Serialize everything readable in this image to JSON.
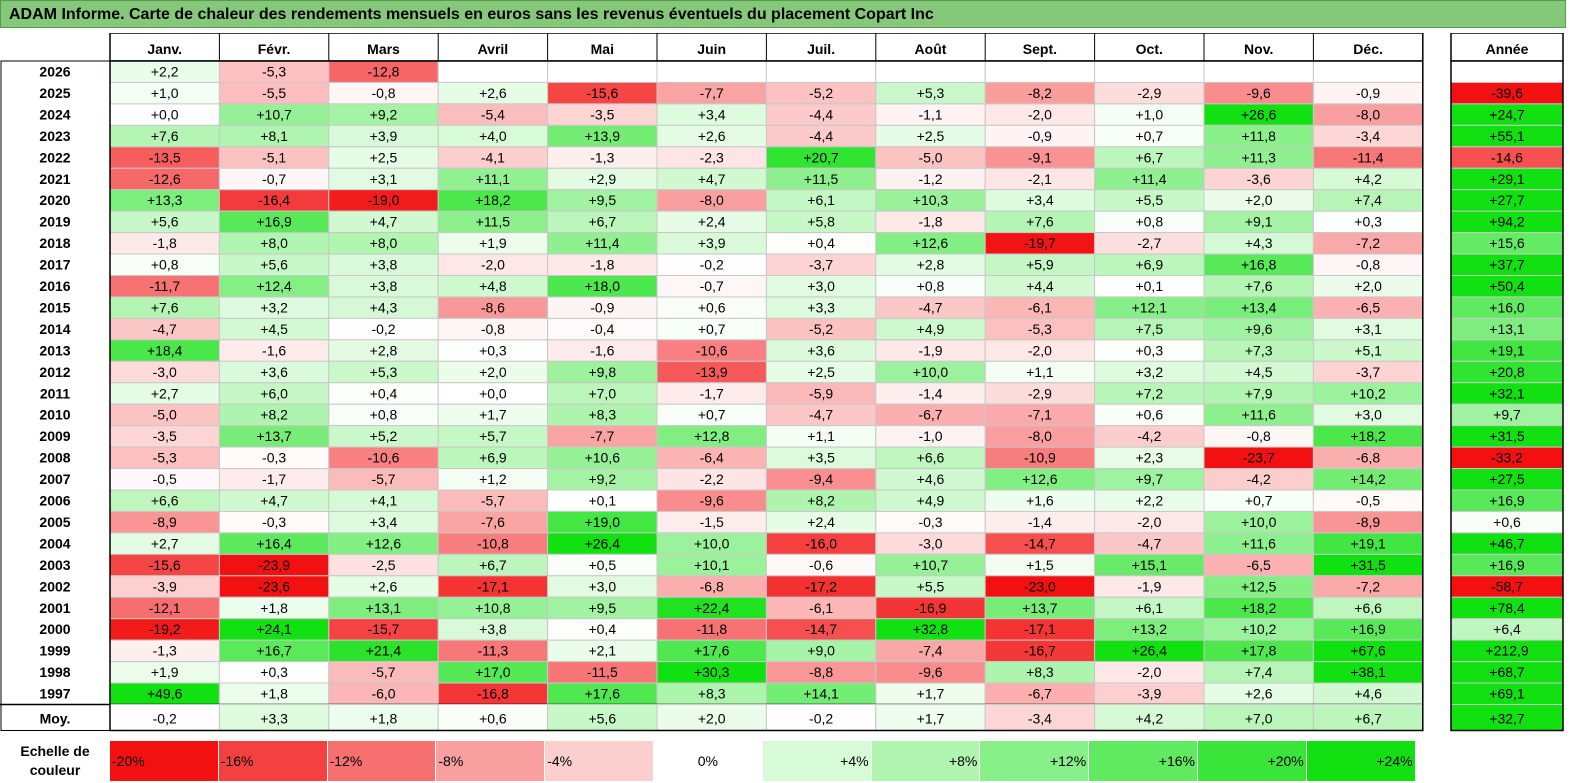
{
  "title": "ADAM Informe. Carte de chaleur des rendements mensuels en euros sans les revenus éventuels du placement Copart Inc",
  "chart_data": {
    "type": "heatmap",
    "title": "ADAM Informe. Carte de chaleur des rendements mensuels en euros sans les revenus éventuels du placement Copart Inc",
    "columns": [
      "Janv.",
      "Févr.",
      "Mars",
      "Avril",
      "Mai",
      "Juin",
      "Juil.",
      "Août",
      "Sept.",
      "Oct.",
      "Nov.",
      "Déc."
    ],
    "annual_header": "Année",
    "rows": [
      {
        "year": "2026",
        "values": [
          "+2,2",
          "-5,3",
          "-12,8",
          null,
          null,
          null,
          null,
          null,
          null,
          null,
          null,
          null
        ],
        "annual": null
      },
      {
        "year": "2025",
        "values": [
          "+1,0",
          "-5,5",
          "-0,8",
          "+2,6",
          "-15,6",
          "-7,7",
          "-5,2",
          "+5,3",
          "-8,2",
          "-2,9",
          "-9,6",
          "-0,9"
        ],
        "annual": "-39,6"
      },
      {
        "year": "2024",
        "values": [
          "+0,0",
          "+10,7",
          "+9,2",
          "-5,4",
          "-3,5",
          "+3,4",
          "-4,4",
          "-1,1",
          "-2,0",
          "+1,0",
          "+26,6",
          "-8,0"
        ],
        "annual": "+24,7"
      },
      {
        "year": "2023",
        "values": [
          "+7,6",
          "+8,1",
          "+3,9",
          "+4,0",
          "+13,9",
          "+2,6",
          "-4,4",
          "+2,5",
          "-0,9",
          "+0,7",
          "+11,8",
          "-3,4"
        ],
        "annual": "+55,1"
      },
      {
        "year": "2022",
        "values": [
          "-13,5",
          "-5,1",
          "+2,5",
          "-4,1",
          "-1,3",
          "-2,3",
          "+20,7",
          "-5,0",
          "-9,1",
          "+6,7",
          "+11,3",
          "-11,4"
        ],
        "annual": "-14,6"
      },
      {
        "year": "2021",
        "values": [
          "-12,6",
          "-0,7",
          "+3,1",
          "+11,1",
          "+2,9",
          "+4,7",
          "+11,5",
          "-1,2",
          "-2,1",
          "+11,4",
          "-3,6",
          "+4,2"
        ],
        "annual": "+29,1"
      },
      {
        "year": "2020",
        "values": [
          "+13,3",
          "-16,4",
          "-19,0",
          "+18,2",
          "+9,5",
          "-8,0",
          "+6,1",
          "+10,3",
          "+3,4",
          "+5,5",
          "+2,0",
          "+7,4"
        ],
        "annual": "+27,7"
      },
      {
        "year": "2019",
        "values": [
          "+5,6",
          "+16,9",
          "+4,7",
          "+11,5",
          "+6,7",
          "+2,4",
          "+5,8",
          "-1,8",
          "+7,6",
          "+0,8",
          "+9,1",
          "+0,3"
        ],
        "annual": "+94,2"
      },
      {
        "year": "2018",
        "values": [
          "-1,8",
          "+8,0",
          "+8,0",
          "+1,9",
          "+11,4",
          "+3,9",
          "+0,4",
          "+12,6",
          "-19,7",
          "-2,7",
          "+4,3",
          "-7,2"
        ],
        "annual": "+15,6"
      },
      {
        "year": "2017",
        "values": [
          "+0,8",
          "+5,6",
          "+3,8",
          "-2,0",
          "-1,8",
          "-0,2",
          "-3,7",
          "+2,8",
          "+5,9",
          "+6,9",
          "+16,8",
          "-0,8"
        ],
        "annual": "+37,7"
      },
      {
        "year": "2016",
        "values": [
          "-11,7",
          "+12,4",
          "+3,8",
          "+4,8",
          "+18,0",
          "-0,7",
          "+3,0",
          "+0,8",
          "+4,4",
          "+0,1",
          "+7,6",
          "+2,0"
        ],
        "annual": "+50,4"
      },
      {
        "year": "2015",
        "values": [
          "+7,6",
          "+3,2",
          "+4,3",
          "-8,6",
          "-0,9",
          "+0,6",
          "+3,3",
          "-4,7",
          "-6,1",
          "+12,1",
          "+13,4",
          "-6,5"
        ],
        "annual": "+16,0"
      },
      {
        "year": "2014",
        "values": [
          "-4,7",
          "+4,5",
          "-0,2",
          "-0,8",
          "-0,4",
          "+0,7",
          "-5,2",
          "+4,9",
          "-5,3",
          "+7,5",
          "+9,6",
          "+3,1"
        ],
        "annual": "+13,1"
      },
      {
        "year": "2013",
        "values": [
          "+18,4",
          "-1,6",
          "+2,8",
          "+0,3",
          "-1,6",
          "-10,6",
          "+3,6",
          "-1,9",
          "-2,0",
          "+0,3",
          "+7,3",
          "+5,1"
        ],
        "annual": "+19,1"
      },
      {
        "year": "2012",
        "values": [
          "-3,0",
          "+3,6",
          "+5,3",
          "+2,0",
          "+9,8",
          "-13,9",
          "+2,5",
          "+10,0",
          "+1,1",
          "+3,2",
          "+4,5",
          "-3,7"
        ],
        "annual": "+20,8"
      },
      {
        "year": "2011",
        "values": [
          "+2,7",
          "+6,0",
          "+0,4",
          "+0,0",
          "+7,0",
          "-1,7",
          "-5,9",
          "-1,4",
          "-2,9",
          "+7,2",
          "+7,9",
          "+10,2"
        ],
        "annual": "+32,1"
      },
      {
        "year": "2010",
        "values": [
          "-5,0",
          "+8,2",
          "+0,8",
          "+1,7",
          "+8,3",
          "+0,7",
          "-4,7",
          "-6,7",
          "-7,1",
          "+0,6",
          "+11,6",
          "+3,0"
        ],
        "annual": "+9,7"
      },
      {
        "year": "2009",
        "values": [
          "-3,5",
          "+13,7",
          "+5,2",
          "+5,7",
          "-7,7",
          "+12,8",
          "+1,1",
          "-1,0",
          "-8,0",
          "-4,2",
          "-0,8",
          "+18,2"
        ],
        "annual": "+31,5"
      },
      {
        "year": "2008",
        "values": [
          "-5,3",
          "-0,3",
          "-10,6",
          "+6,9",
          "+10,6",
          "-6,4",
          "+3,5",
          "+6,6",
          "-10,9",
          "+2,3",
          "-23,7",
          "-6,8"
        ],
        "annual": "-33,2"
      },
      {
        "year": "2007",
        "values": [
          "-0,5",
          "-1,7",
          "-5,7",
          "+1,2",
          "+9,2",
          "-2,2",
          "-9,4",
          "+4,6",
          "+12,6",
          "+9,7",
          "-4,2",
          "+14,2"
        ],
        "annual": "+27,5"
      },
      {
        "year": "2006",
        "values": [
          "+6,6",
          "+4,7",
          "+4,1",
          "-5,7",
          "+0,1",
          "-9,6",
          "+8,2",
          "+4,9",
          "+1,6",
          "+2,2",
          "+0,7",
          "-0,5"
        ],
        "annual": "+16,9"
      },
      {
        "year": "2005",
        "values": [
          "-8,9",
          "-0,3",
          "+3,4",
          "-7,6",
          "+19,0",
          "-1,5",
          "+2,4",
          "-0,3",
          "-1,4",
          "-2,0",
          "+10,0",
          "-8,9"
        ],
        "annual": "+0,6"
      },
      {
        "year": "2004",
        "values": [
          "+2,7",
          "+16,4",
          "+12,6",
          "-10,8",
          "+26,4",
          "+10,0",
          "-16,0",
          "-3,0",
          "-14,7",
          "-4,7",
          "+11,6",
          "+19,1"
        ],
        "annual": "+46,7"
      },
      {
        "year": "2003",
        "values": [
          "-15,6",
          "-23,9",
          "-2,5",
          "+6,7",
          "+0,5",
          "+10,1",
          "-0,6",
          "+10,7",
          "+1,5",
          "+15,1",
          "-6,5",
          "+31,5"
        ],
        "annual": "+16,9"
      },
      {
        "year": "2002",
        "values": [
          "-3,9",
          "-23,6",
          "+2,6",
          "-17,1",
          "+3,0",
          "-6,8",
          "-17,2",
          "+5,5",
          "-23,0",
          "-1,9",
          "+12,5",
          "-7,2"
        ],
        "annual": "-58,7"
      },
      {
        "year": "2001",
        "values": [
          "-12,1",
          "+1,8",
          "+13,1",
          "+10,8",
          "+9,5",
          "+22,4",
          "-6,1",
          "-16,9",
          "+13,7",
          "+6,1",
          "+18,2",
          "+6,6"
        ],
        "annual": "+78,4"
      },
      {
        "year": "2000",
        "values": [
          "-19,2",
          "+24,1",
          "-15,7",
          "+3,8",
          "+0,4",
          "-11,8",
          "-14,7",
          "+32,8",
          "-17,1",
          "+13,2",
          "+10,2",
          "+16,9"
        ],
        "annual": "+6,4"
      },
      {
        "year": "1999",
        "values": [
          "-1,3",
          "+16,7",
          "+21,4",
          "-11,3",
          "+2,1",
          "+17,6",
          "+9,0",
          "-7,4",
          "-16,7",
          "+26,4",
          "+17,8",
          "+67,6"
        ],
        "annual": "+212,9"
      },
      {
        "year": "1998",
        "values": [
          "+1,9",
          "+0,3",
          "-5,7",
          "+17,0",
          "-11,5",
          "+30,3",
          "-8,8",
          "-9,6",
          "+8,3",
          "-2,0",
          "+7,4",
          "+38,1"
        ],
        "annual": "+68,7"
      },
      {
        "year": "1997",
        "values": [
          "+49,6",
          "+1,8",
          "-6,0",
          "-16,8",
          "+17,6",
          "+8,3",
          "+14,1",
          "+1,7",
          "-6,7",
          "-3,9",
          "+2,6",
          "+4,6"
        ],
        "annual": "+69,1"
      }
    ],
    "average": {
      "label": "Moy.",
      "values": [
        "-0,2",
        "+3,3",
        "+1,8",
        "+0,6",
        "+5,6",
        "+2,0",
        "-0,2",
        "+1,7",
        "-3,4",
        "+4,2",
        "+7,0",
        "+6,7"
      ],
      "annual": "+32,7"
    },
    "scale": {
      "label": "Echelle de couleur",
      "entries": [
        {
          "value": -20,
          "text": "-20%"
        },
        {
          "value": -16,
          "text": "-16%"
        },
        {
          "value": -12,
          "text": "-12%"
        },
        {
          "value": -8,
          "text": "-8%"
        },
        {
          "value": -4,
          "text": "-4%"
        },
        {
          "value": 0,
          "text": "0%"
        },
        {
          "value": 4,
          "text": "+4%"
        },
        {
          "value": 8,
          "text": "+8%"
        },
        {
          "value": 12,
          "text": "+12%"
        },
        {
          "value": 16,
          "text": "+16%"
        },
        {
          "value": 20,
          "text": "+20%"
        },
        {
          "value": 24,
          "text": "+24%"
        }
      ]
    }
  }
}
